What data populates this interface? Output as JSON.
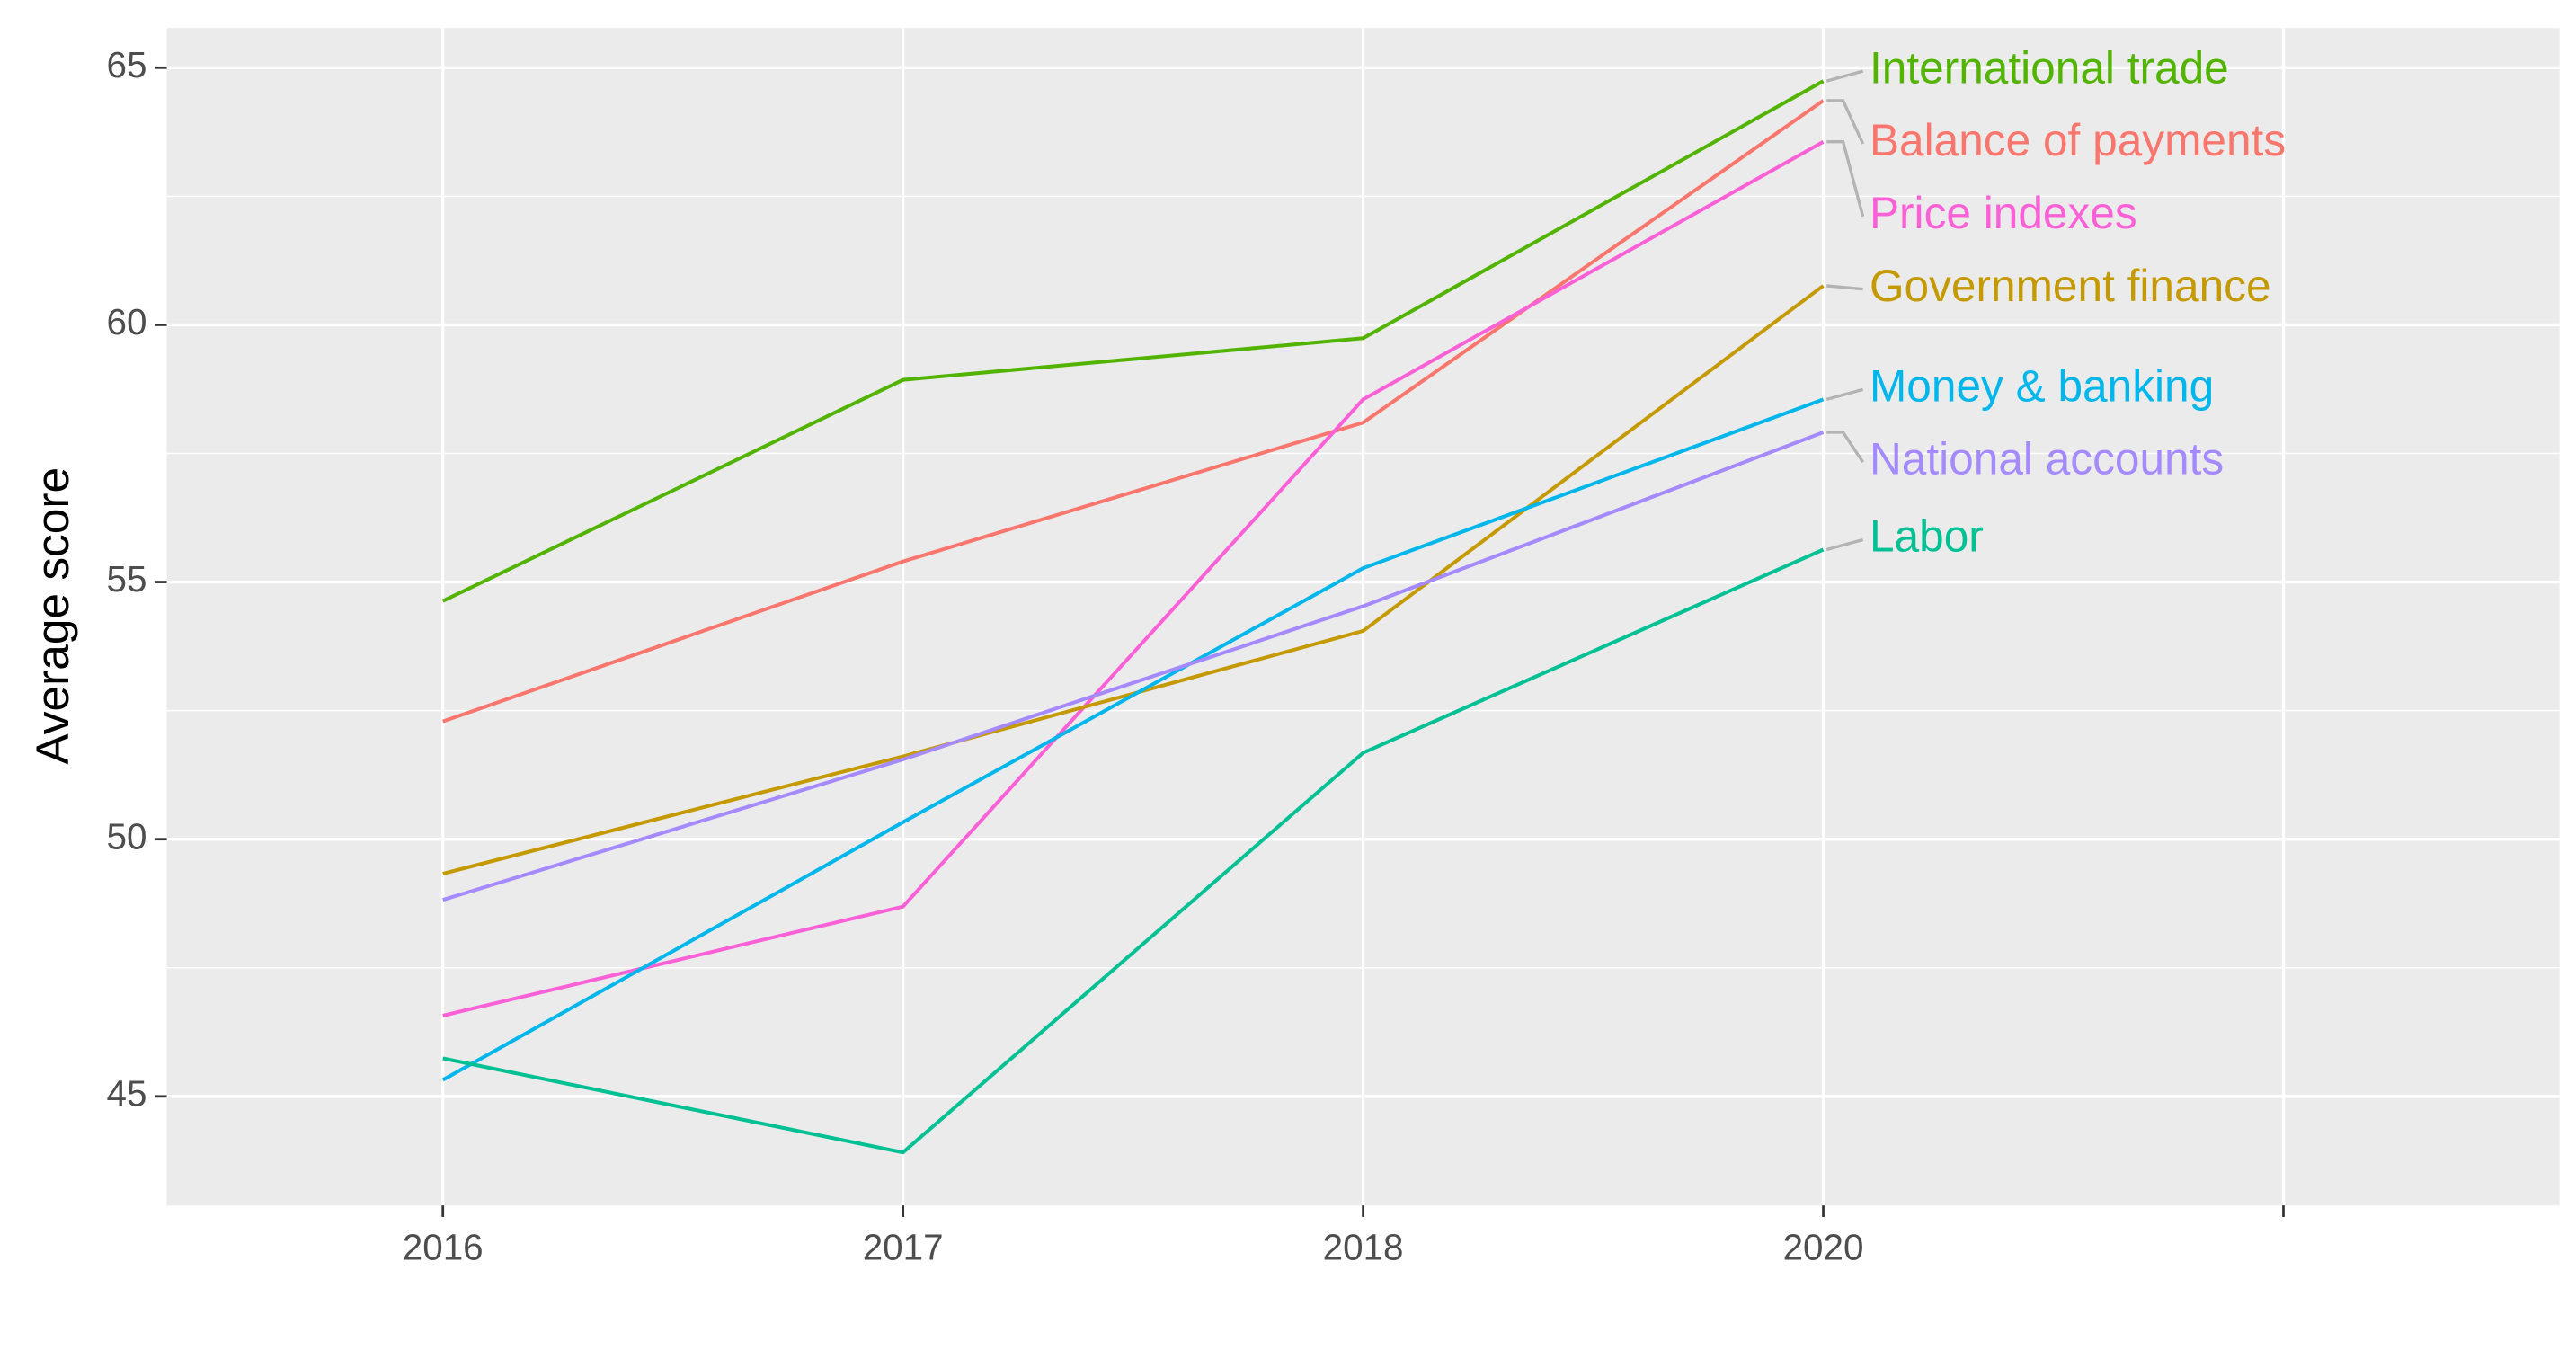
{
  "chart_data": {
    "type": "line",
    "ylabel": "Average score",
    "categories": [
      "2016",
      "2017",
      "2018",
      "2020",
      null
    ],
    "series": [
      {
        "name": "International trade",
        "color": "#53B400",
        "values": [
          54.63,
          58.93,
          59.74,
          64.74,
          null
        ]
      },
      {
        "name": "Balance of payments",
        "color": "#F8766D",
        "values": [
          52.29,
          55.4,
          58.1,
          64.36,
          null
        ]
      },
      {
        "name": "Price indexes",
        "color": "#FB61D7",
        "values": [
          46.57,
          48.69,
          58.55,
          63.56,
          null
        ]
      },
      {
        "name": "Government finance",
        "color": "#C49A00",
        "values": [
          49.33,
          51.61,
          54.05,
          60.76,
          null
        ]
      },
      {
        "name": "Money & banking",
        "color": "#00B6EB",
        "values": [
          45.32,
          50.33,
          55.27,
          58.55,
          null
        ]
      },
      {
        "name": "National accounts",
        "color": "#A58AFF",
        "values": [
          48.82,
          51.55,
          54.53,
          57.91,
          null
        ]
      },
      {
        "name": "Labor",
        "color": "#00C094",
        "values": [
          45.74,
          43.91,
          51.68,
          55.63,
          null
        ]
      }
    ],
    "ylim": [
      42.88,
      65.77
    ],
    "yticks": [
      45,
      50,
      55,
      60,
      65
    ],
    "grid": true
  }
}
